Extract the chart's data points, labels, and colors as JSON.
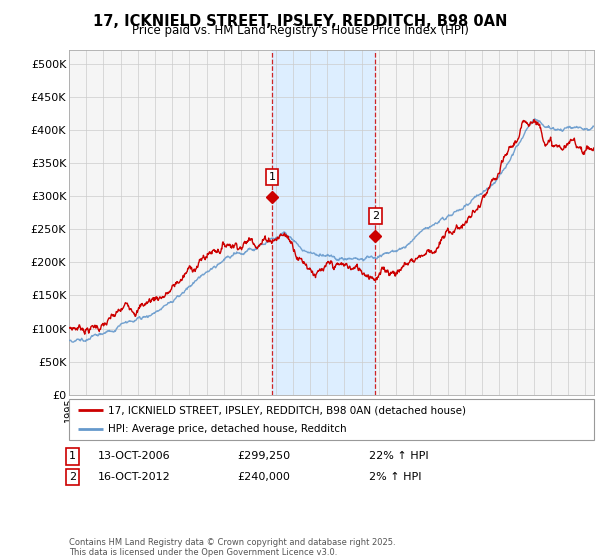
{
  "title": "17, ICKNIELD STREET, IPSLEY, REDDITCH, B98 0AN",
  "subtitle": "Price paid vs. HM Land Registry's House Price Index (HPI)",
  "legend_line1": "17, ICKNIELD STREET, IPSLEY, REDDITCH, B98 0AN (detached house)",
  "legend_line2": "HPI: Average price, detached house, Redditch",
  "annotation1_label": "1",
  "annotation1_date": "13-OCT-2006",
  "annotation1_price": "£299,250",
  "annotation1_hpi": "22% ↑ HPI",
  "annotation2_label": "2",
  "annotation2_date": "16-OCT-2012",
  "annotation2_price": "£240,000",
  "annotation2_hpi": "2% ↑ HPI",
  "vline1_x": 2006.79,
  "vline2_x": 2012.79,
  "t1_x": 2006.79,
  "t1_y": 299250,
  "t2_x": 2012.79,
  "t2_y": 240000,
  "price_color": "#cc0000",
  "hpi_color": "#6699cc",
  "shaded_color": "#ddeeff",
  "plot_bg_color": "#f5f5f5",
  "grid_color": "#cccccc",
  "ylim": [
    0,
    520000
  ],
  "xlim_start": 1995.0,
  "xlim_end": 2025.5,
  "yticks": [
    0,
    50000,
    100000,
    150000,
    200000,
    250000,
    300000,
    350000,
    400000,
    450000,
    500000
  ],
  "ytick_labels": [
    "£0",
    "£50K",
    "£100K",
    "£150K",
    "£200K",
    "£250K",
    "£300K",
    "£350K",
    "£400K",
    "£450K",
    "£500K"
  ],
  "footer": "Contains HM Land Registry data © Crown copyright and database right 2025.\nThis data is licensed under the Open Government Licence v3.0."
}
